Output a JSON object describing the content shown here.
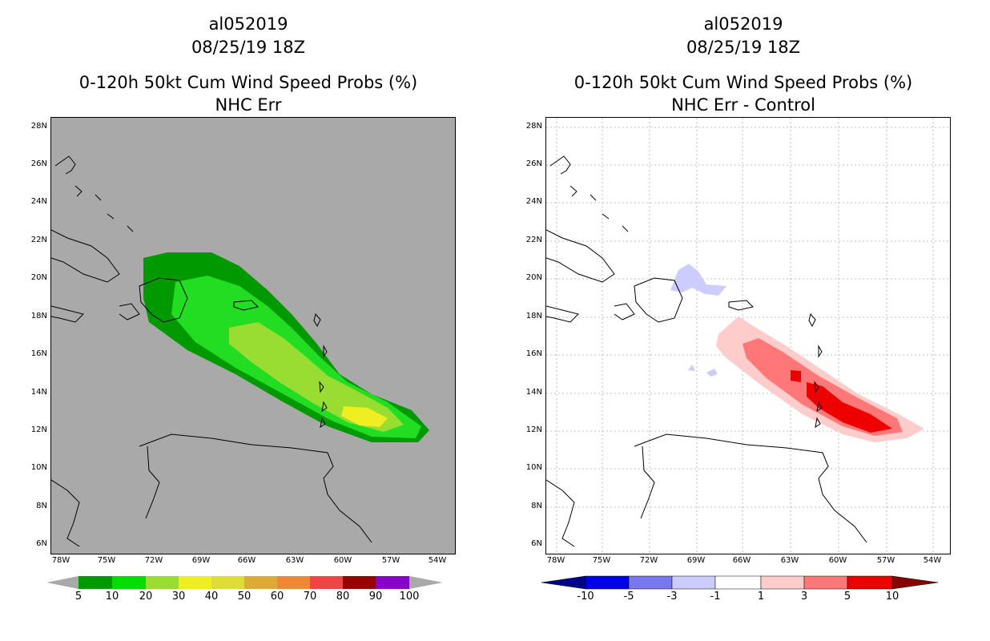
{
  "left_panel": {
    "storm_id": "al052019",
    "datetime": "08/25/19 18Z",
    "product_title": "0-120h 50kt Cum Wind Speed Probs (%)",
    "subtitle": "NHC Err",
    "background_color": "#a9a9a9",
    "colorbar_labels": [
      "5",
      "10",
      "20",
      "30",
      "40",
      "50",
      "60",
      "70",
      "80",
      "90",
      "100"
    ],
    "colorbar_colors": [
      "#009900",
      "#00dd00",
      "#99dd33",
      "#eeee22",
      "#dddd33",
      "#ddaa33",
      "#ee8833",
      "#ee4444",
      "#990000",
      "#8800cc"
    ]
  },
  "right_panel": {
    "storm_id": "al052019",
    "datetime": "08/25/19 18Z",
    "product_title": "0-120h 50kt Cum Wind Speed Probs (%)",
    "subtitle": "NHC Err - Control",
    "background_color": "#ffffff",
    "colorbar_labels": [
      "-10",
      "-5",
      "-3",
      "-1",
      "1",
      "3",
      "5",
      "10"
    ],
    "colorbar_colors": [
      "#0000ee",
      "#7777ee",
      "#ccccff",
      "#ffffff",
      "#ffcccc",
      "#ff7777",
      "#ee0000"
    ],
    "colorbar_end_colors": [
      "#000088",
      "#880000"
    ]
  },
  "axes": {
    "lat_labels": [
      "28N",
      "26N",
      "24N",
      "22N",
      "20N",
      "18N",
      "16N",
      "14N",
      "12N",
      "10N",
      "8N",
      "6N"
    ],
    "lon_labels": [
      "78W",
      "75W",
      "72W",
      "69W",
      "66W",
      "63W",
      "60W",
      "57W",
      "54W"
    ]
  }
}
